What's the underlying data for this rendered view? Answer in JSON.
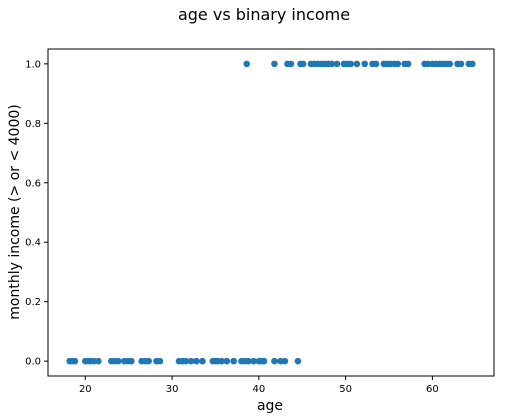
{
  "chart_data": {
    "type": "scatter",
    "title": "age vs binary income",
    "xlabel": "age",
    "ylabel": "monthly income (> or < 4000)",
    "xlim": [
      15.7,
      67.1
    ],
    "ylim": [
      -0.05,
      1.05
    ],
    "xticks": [
      20,
      30,
      40,
      50,
      60
    ],
    "yticks": [
      0.0,
      0.2,
      0.4,
      0.6,
      0.8,
      1.0
    ],
    "xtick_labels": [
      "20",
      "30",
      "40",
      "50",
      "60"
    ],
    "ytick_labels": [
      "0.0",
      "0.2",
      "0.4",
      "0.6",
      "0.8",
      "1.0"
    ],
    "grid": false,
    "series": [
      {
        "color": "#1f77b4",
        "points": [
          [
            18.2,
            0
          ],
          [
            18.5,
            0
          ],
          [
            18.8,
            0
          ],
          [
            20.0,
            0
          ],
          [
            20.3,
            0
          ],
          [
            20.6,
            0
          ],
          [
            21.0,
            0
          ],
          [
            21.5,
            0
          ],
          [
            23.0,
            0
          ],
          [
            23.4,
            0
          ],
          [
            23.8,
            0
          ],
          [
            24.5,
            0
          ],
          [
            24.9,
            0
          ],
          [
            25.3,
            0
          ],
          [
            26.5,
            0
          ],
          [
            26.9,
            0
          ],
          [
            27.3,
            0
          ],
          [
            28.2,
            0
          ],
          [
            28.6,
            0
          ],
          [
            30.8,
            0
          ],
          [
            31.2,
            0
          ],
          [
            31.6,
            0
          ],
          [
            32.2,
            0
          ],
          [
            32.8,
            0
          ],
          [
            33.5,
            0
          ],
          [
            34.7,
            0
          ],
          [
            35.0,
            0
          ],
          [
            35.3,
            0
          ],
          [
            35.7,
            0
          ],
          [
            36.3,
            0
          ],
          [
            37.1,
            0
          ],
          [
            38.0,
            0
          ],
          [
            38.4,
            0
          ],
          [
            38.8,
            0
          ],
          [
            39.4,
            0
          ],
          [
            40.0,
            0
          ],
          [
            40.3,
            0
          ],
          [
            40.6,
            0
          ],
          [
            41.8,
            0
          ],
          [
            42.5,
            0
          ],
          [
            43.0,
            0
          ],
          [
            44.5,
            0
          ],
          [
            38.6,
            1
          ],
          [
            41.8,
            1
          ],
          [
            43.3,
            1
          ],
          [
            43.7,
            1
          ],
          [
            44.8,
            1
          ],
          [
            45.1,
            1
          ],
          [
            46.0,
            1
          ],
          [
            46.4,
            1
          ],
          [
            46.8,
            1
          ],
          [
            47.2,
            1
          ],
          [
            47.6,
            1
          ],
          [
            48.0,
            1
          ],
          [
            48.4,
            1
          ],
          [
            49.0,
            1
          ],
          [
            49.8,
            1
          ],
          [
            50.2,
            1
          ],
          [
            50.6,
            1
          ],
          [
            51.3,
            1
          ],
          [
            52.2,
            1
          ],
          [
            53.1,
            1
          ],
          [
            53.5,
            1
          ],
          [
            54.4,
            1
          ],
          [
            54.8,
            1
          ],
          [
            55.2,
            1
          ],
          [
            55.6,
            1
          ],
          [
            56.0,
            1
          ],
          [
            56.8,
            1
          ],
          [
            57.2,
            1
          ],
          [
            59.1,
            1
          ],
          [
            59.5,
            1
          ],
          [
            60.0,
            1
          ],
          [
            60.4,
            1
          ],
          [
            60.8,
            1
          ],
          [
            61.2,
            1
          ],
          [
            61.6,
            1
          ],
          [
            62.0,
            1
          ],
          [
            62.9,
            1
          ],
          [
            63.3,
            1
          ],
          [
            64.2,
            1
          ],
          [
            64.6,
            1
          ]
        ]
      }
    ]
  }
}
